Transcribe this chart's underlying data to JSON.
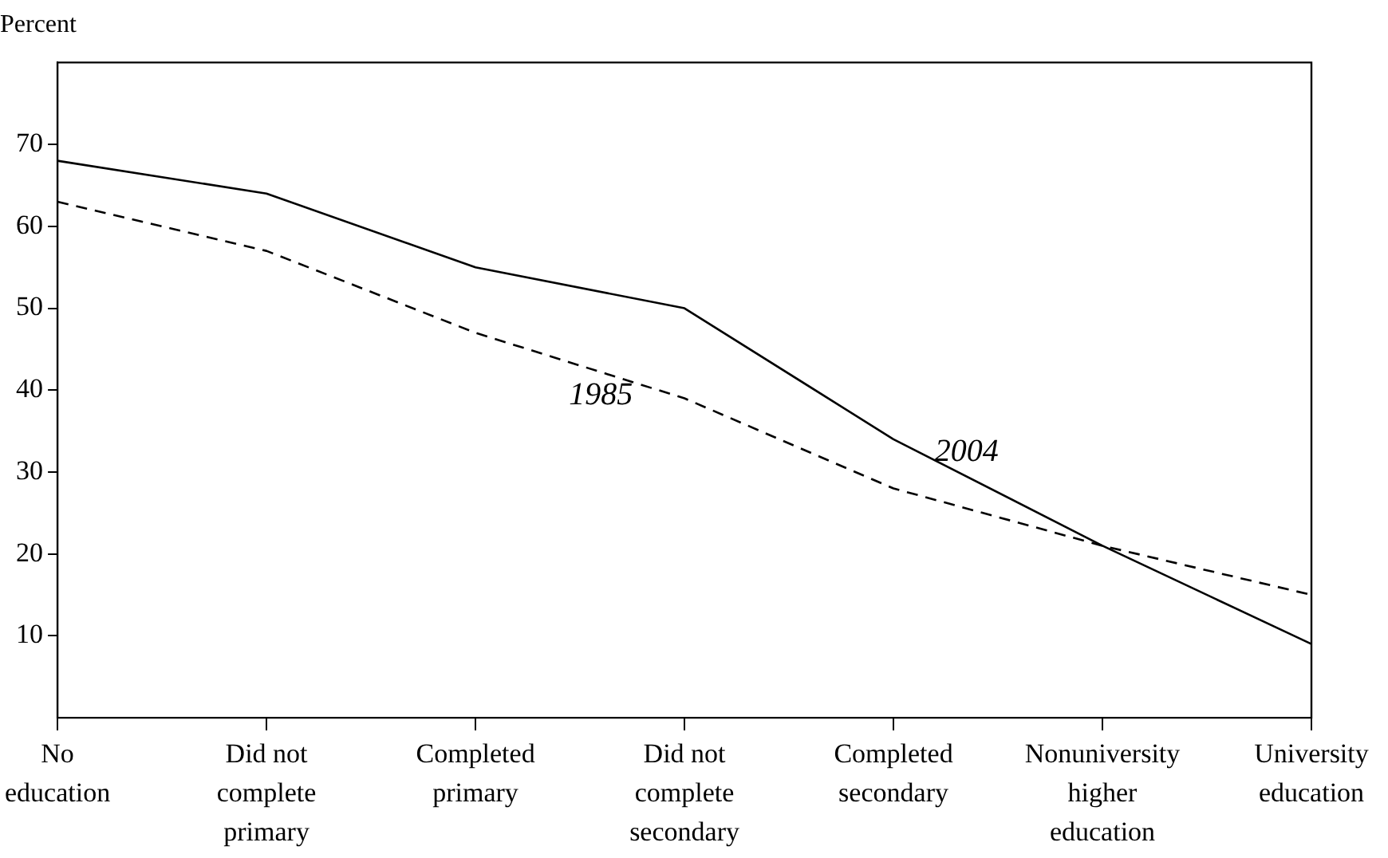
{
  "chart_data": {
    "type": "line",
    "ylabel": "Percent",
    "categories": [
      "No education",
      "Did not complete primary",
      "Completed primary",
      "Did not complete secondary",
      "Completed secondary",
      "Nonuniversity higher education",
      "University education"
    ],
    "series": [
      {
        "name": "2004",
        "color": "#000000",
        "line_style": "solid",
        "values": [
          68,
          64,
          55,
          50,
          34,
          21,
          9
        ]
      },
      {
        "name": "1985",
        "color": "#000000",
        "line_style": "dashed",
        "values": [
          63,
          57,
          47,
          39,
          28,
          21,
          15
        ]
      }
    ],
    "ylim": [
      0,
      80
    ],
    "yticks": [
      10,
      20,
      30,
      40,
      50,
      60,
      70
    ],
    "grid": false,
    "legend": false,
    "marker": "none"
  }
}
